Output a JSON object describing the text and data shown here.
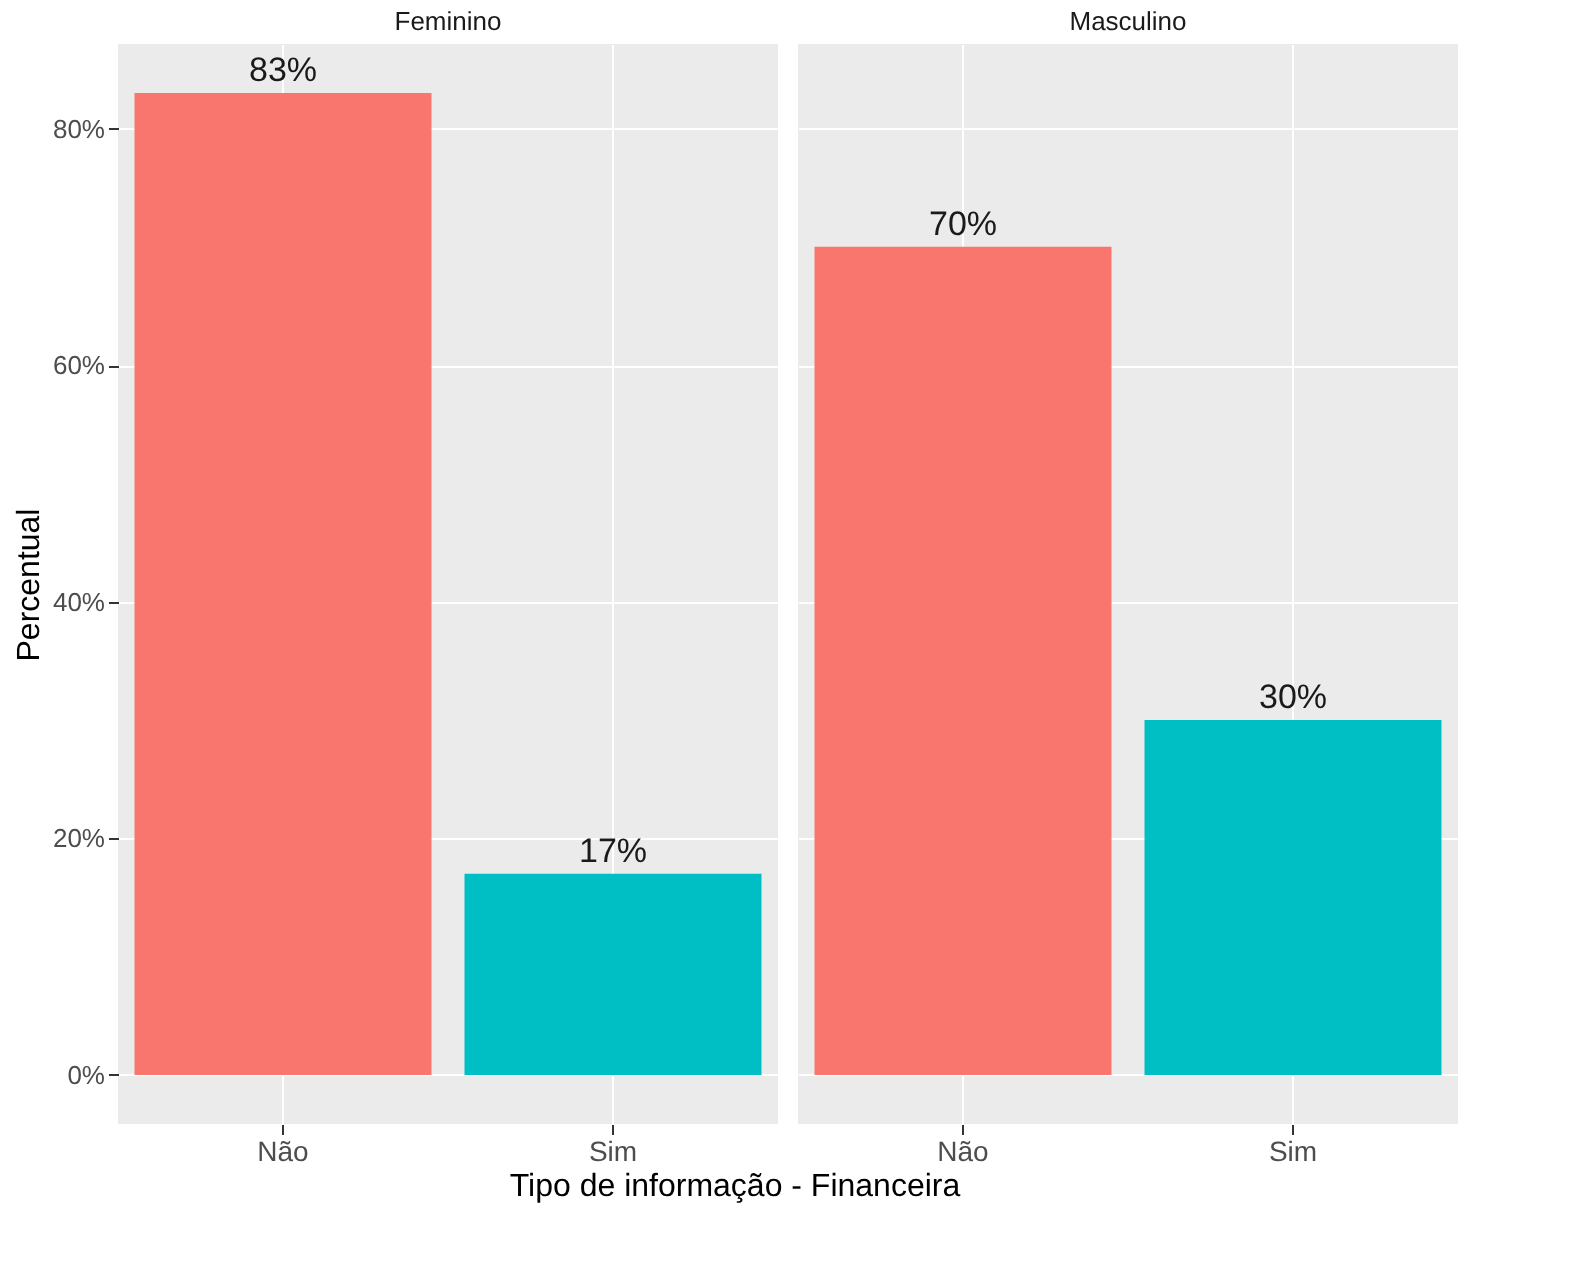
{
  "chart_data": [
    {
      "type": "bar",
      "title": "Feminino",
      "xlabel": "Tipo de informação - Financeira",
      "ylabel": "Percentual",
      "categories": [
        "Não",
        "Sim"
      ],
      "values": [
        83,
        17
      ],
      "colors": [
        "#f8766d",
        "#00bfc4"
      ],
      "value_labels": [
        "83%",
        "17%"
      ],
      "ylim": [
        -4.15,
        87.15
      ],
      "yticks": [
        {
          "value": 0,
          "label": "0%"
        },
        {
          "value": 20,
          "label": "20%"
        },
        {
          "value": 40,
          "label": "40%"
        },
        {
          "value": 60,
          "label": "60%"
        },
        {
          "value": 80,
          "label": "80%"
        }
      ],
      "grid": true
    },
    {
      "type": "bar",
      "title": "Masculino",
      "categories": [
        "Não",
        "Sim"
      ],
      "values": [
        70,
        30
      ],
      "colors": [
        "#f8766d",
        "#00bfc4"
      ],
      "value_labels": [
        "70%",
        "30%"
      ],
      "ylim": [
        -4.15,
        87.15
      ],
      "yticks": [
        {
          "value": 0,
          "label": null
        },
        {
          "value": 20,
          "label": null
        },
        {
          "value": 40,
          "label": null
        },
        {
          "value": 60,
          "label": null
        },
        {
          "value": 80,
          "label": null
        }
      ],
      "grid": true
    }
  ]
}
